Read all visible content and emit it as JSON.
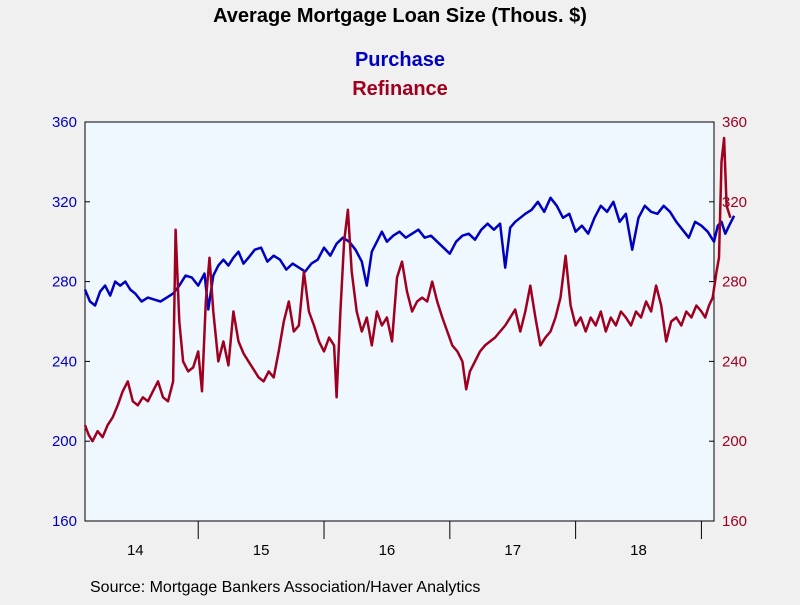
{
  "chart_data": {
    "type": "line",
    "title": "Average Mortgage Loan Size (Thous. $)",
    "source": "Source:  Mortgage Bankers Association/Haver Analytics",
    "colors": {
      "purchase": "#0000c0",
      "refinance": "#a00020",
      "plot_bg": "#f0f8ff",
      "page_bg": "#f0f0f0"
    },
    "y_left": {
      "min": 160,
      "max": 360,
      "ticks": [
        160,
        200,
        240,
        280,
        320,
        360
      ]
    },
    "y_right": {
      "min": 160,
      "max": 360,
      "ticks": [
        160,
        200,
        240,
        280,
        320,
        360
      ]
    },
    "x_range": [
      2013.6,
      2018.6
    ],
    "x_year_boundaries": [
      2014,
      2015,
      2016,
      2017,
      2018
    ],
    "x_tick_labels": [
      {
        "label": "14",
        "at": 2014.0
      },
      {
        "label": "15",
        "at": 2015.0
      },
      {
        "label": "16",
        "at": 2016.0
      },
      {
        "label": "17",
        "at": 2017.0
      },
      {
        "label": "18",
        "at": 2018.0
      }
    ],
    "grid": false,
    "legend": "top-center",
    "series": [
      {
        "name": "Purchase",
        "axis": "left",
        "points": [
          [
            2013.6,
            276
          ],
          [
            2013.64,
            270
          ],
          [
            2013.68,
            268
          ],
          [
            2013.72,
            275
          ],
          [
            2013.76,
            278
          ],
          [
            2013.8,
            273
          ],
          [
            2013.84,
            280
          ],
          [
            2013.88,
            278
          ],
          [
            2013.92,
            280
          ],
          [
            2013.96,
            276
          ],
          [
            2014.0,
            274
          ],
          [
            2014.05,
            270
          ],
          [
            2014.1,
            272
          ],
          [
            2014.15,
            271
          ],
          [
            2014.2,
            270
          ],
          [
            2014.25,
            272
          ],
          [
            2014.3,
            274
          ],
          [
            2014.35,
            278
          ],
          [
            2014.4,
            283
          ],
          [
            2014.45,
            282
          ],
          [
            2014.5,
            278
          ],
          [
            2014.55,
            284
          ],
          [
            2014.58,
            266
          ],
          [
            2014.62,
            283
          ],
          [
            2014.66,
            288
          ],
          [
            2014.7,
            291
          ],
          [
            2014.74,
            288
          ],
          [
            2014.78,
            292
          ],
          [
            2014.82,
            295
          ],
          [
            2014.86,
            289
          ],
          [
            2014.9,
            292
          ],
          [
            2014.95,
            296
          ],
          [
            2015.0,
            297
          ],
          [
            2015.05,
            290
          ],
          [
            2015.1,
            293
          ],
          [
            2015.15,
            291
          ],
          [
            2015.2,
            286
          ],
          [
            2015.25,
            289
          ],
          [
            2015.3,
            287
          ],
          [
            2015.35,
            285
          ],
          [
            2015.4,
            289
          ],
          [
            2015.45,
            291
          ],
          [
            2015.5,
            297
          ],
          [
            2015.55,
            293
          ],
          [
            2015.6,
            299
          ],
          [
            2015.65,
            302
          ],
          [
            2015.7,
            300
          ],
          [
            2015.75,
            296
          ],
          [
            2015.8,
            290
          ],
          [
            2015.84,
            278
          ],
          [
            2015.88,
            295
          ],
          [
            2015.92,
            300
          ],
          [
            2015.96,
            305
          ],
          [
            2016.0,
            300
          ],
          [
            2016.05,
            303
          ],
          [
            2016.1,
            305
          ],
          [
            2016.15,
            302
          ],
          [
            2016.2,
            304
          ],
          [
            2016.25,
            306
          ],
          [
            2016.3,
            302
          ],
          [
            2016.35,
            303
          ],
          [
            2016.4,
            300
          ],
          [
            2016.45,
            297
          ],
          [
            2016.5,
            294
          ],
          [
            2016.55,
            300
          ],
          [
            2016.6,
            303
          ],
          [
            2016.65,
            304
          ],
          [
            2016.7,
            301
          ],
          [
            2016.75,
            306
          ],
          [
            2016.8,
            309
          ],
          [
            2016.85,
            306
          ],
          [
            2016.9,
            309
          ],
          [
            2016.94,
            287
          ],
          [
            2016.98,
            307
          ],
          [
            2017.02,
            310
          ],
          [
            2017.06,
            312
          ],
          [
            2017.1,
            314
          ],
          [
            2017.15,
            316
          ],
          [
            2017.2,
            320
          ],
          [
            2017.25,
            315
          ],
          [
            2017.3,
            322
          ],
          [
            2017.35,
            318
          ],
          [
            2017.4,
            312
          ],
          [
            2017.45,
            314
          ],
          [
            2017.5,
            305
          ],
          [
            2017.55,
            308
          ],
          [
            2017.6,
            304
          ],
          [
            2017.65,
            312
          ],
          [
            2017.7,
            318
          ],
          [
            2017.75,
            315
          ],
          [
            2017.8,
            320
          ],
          [
            2017.85,
            310
          ],
          [
            2017.9,
            314
          ],
          [
            2017.95,
            296
          ],
          [
            2018.0,
            312
          ],
          [
            2018.05,
            318
          ],
          [
            2018.1,
            315
          ],
          [
            2018.15,
            314
          ],
          [
            2018.2,
            318
          ],
          [
            2018.25,
            315
          ],
          [
            2018.3,
            310
          ],
          [
            2018.35,
            306
          ],
          [
            2018.4,
            302
          ],
          [
            2018.45,
            310
          ],
          [
            2018.5,
            308
          ],
          [
            2018.55,
            305
          ],
          [
            2018.6,
            300
          ],
          [
            2018.63,
            308
          ],
          [
            2018.66,
            310
          ],
          [
            2018.69,
            304
          ],
          [
            2018.72,
            308
          ],
          [
            2018.76,
            313
          ]
        ]
      },
      {
        "name": "Refinance",
        "axis": "right",
        "points": [
          [
            2013.6,
            208
          ],
          [
            2013.63,
            203
          ],
          [
            2013.66,
            200
          ],
          [
            2013.7,
            205
          ],
          [
            2013.74,
            202
          ],
          [
            2013.78,
            208
          ],
          [
            2013.82,
            212
          ],
          [
            2013.86,
            218
          ],
          [
            2013.9,
            225
          ],
          [
            2013.94,
            230
          ],
          [
            2013.98,
            220
          ],
          [
            2014.02,
            218
          ],
          [
            2014.06,
            222
          ],
          [
            2014.1,
            220
          ],
          [
            2014.14,
            225
          ],
          [
            2014.18,
            230
          ],
          [
            2014.22,
            222
          ],
          [
            2014.26,
            220
          ],
          [
            2014.3,
            230
          ],
          [
            2014.32,
            306
          ],
          [
            2014.35,
            260
          ],
          [
            2014.38,
            240
          ],
          [
            2014.42,
            235
          ],
          [
            2014.46,
            237
          ],
          [
            2014.5,
            245
          ],
          [
            2014.53,
            225
          ],
          [
            2014.56,
            270
          ],
          [
            2014.59,
            292
          ],
          [
            2014.62,
            265
          ],
          [
            2014.66,
            240
          ],
          [
            2014.7,
            250
          ],
          [
            2014.74,
            238
          ],
          [
            2014.78,
            265
          ],
          [
            2014.82,
            250
          ],
          [
            2014.86,
            244
          ],
          [
            2014.9,
            240
          ],
          [
            2014.94,
            236
          ],
          [
            2014.98,
            232
          ],
          [
            2015.02,
            230
          ],
          [
            2015.06,
            235
          ],
          [
            2015.1,
            232
          ],
          [
            2015.14,
            245
          ],
          [
            2015.18,
            260
          ],
          [
            2015.22,
            270
          ],
          [
            2015.26,
            255
          ],
          [
            2015.3,
            258
          ],
          [
            2015.34,
            285
          ],
          [
            2015.38,
            265
          ],
          [
            2015.42,
            258
          ],
          [
            2015.46,
            250
          ],
          [
            2015.5,
            245
          ],
          [
            2015.54,
            252
          ],
          [
            2015.58,
            248
          ],
          [
            2015.6,
            222
          ],
          [
            2015.63,
            265
          ],
          [
            2015.66,
            300
          ],
          [
            2015.69,
            316
          ],
          [
            2015.72,
            285
          ],
          [
            2015.76,
            265
          ],
          [
            2015.8,
            255
          ],
          [
            2015.84,
            262
          ],
          [
            2015.88,
            248
          ],
          [
            2015.92,
            265
          ],
          [
            2015.96,
            258
          ],
          [
            2016.0,
            262
          ],
          [
            2016.04,
            250
          ],
          [
            2016.08,
            282
          ],
          [
            2016.12,
            290
          ],
          [
            2016.16,
            275
          ],
          [
            2016.2,
            265
          ],
          [
            2016.24,
            270
          ],
          [
            2016.28,
            272
          ],
          [
            2016.32,
            270
          ],
          [
            2016.36,
            280
          ],
          [
            2016.4,
            270
          ],
          [
            2016.44,
            262
          ],
          [
            2016.48,
            255
          ],
          [
            2016.52,
            248
          ],
          [
            2016.56,
            245
          ],
          [
            2016.6,
            240
          ],
          [
            2016.63,
            226
          ],
          [
            2016.66,
            235
          ],
          [
            2016.7,
            240
          ],
          [
            2016.74,
            245
          ],
          [
            2016.78,
            248
          ],
          [
            2016.82,
            250
          ],
          [
            2016.86,
            252
          ],
          [
            2016.9,
            255
          ],
          [
            2016.94,
            258
          ],
          [
            2016.98,
            262
          ],
          [
            2017.02,
            266
          ],
          [
            2017.06,
            255
          ],
          [
            2017.1,
            265
          ],
          [
            2017.14,
            278
          ],
          [
            2017.18,
            262
          ],
          [
            2017.22,
            248
          ],
          [
            2017.26,
            252
          ],
          [
            2017.3,
            255
          ],
          [
            2017.34,
            262
          ],
          [
            2017.38,
            272
          ],
          [
            2017.42,
            293
          ],
          [
            2017.46,
            268
          ],
          [
            2017.5,
            258
          ],
          [
            2017.54,
            262
          ],
          [
            2017.58,
            255
          ],
          [
            2017.62,
            262
          ],
          [
            2017.66,
            258
          ],
          [
            2017.7,
            265
          ],
          [
            2017.74,
            255
          ],
          [
            2017.78,
            262
          ],
          [
            2017.82,
            258
          ],
          [
            2017.86,
            265
          ],
          [
            2017.9,
            262
          ],
          [
            2017.94,
            258
          ],
          [
            2017.98,
            265
          ],
          [
            2018.02,
            262
          ],
          [
            2018.06,
            270
          ],
          [
            2018.1,
            265
          ],
          [
            2018.14,
            278
          ],
          [
            2018.18,
            268
          ],
          [
            2018.22,
            250
          ],
          [
            2018.26,
            260
          ],
          [
            2018.3,
            262
          ],
          [
            2018.34,
            258
          ],
          [
            2018.38,
            265
          ],
          [
            2018.42,
            262
          ],
          [
            2018.46,
            268
          ],
          [
            2018.5,
            265
          ],
          [
            2018.53,
            262
          ],
          [
            2018.56,
            268
          ],
          [
            2018.59,
            272
          ],
          [
            2018.62,
            285
          ],
          [
            2018.64,
            292
          ],
          [
            2018.66,
            340
          ],
          [
            2018.68,
            352
          ],
          [
            2018.7,
            318
          ],
          [
            2018.73,
            312
          ]
        ]
      }
    ]
  }
}
